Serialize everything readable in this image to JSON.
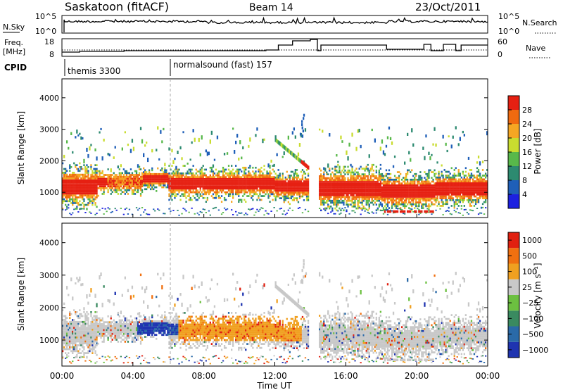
{
  "header": {
    "station": "Saskatoon (fitACF)",
    "beam": "Beam 14",
    "date": "23/Oct/2011"
  },
  "top_panels": {
    "nsky": {
      "label": "N.Sky",
      "right_label": "N.Search",
      "left_ticks": [
        "10^5",
        "10^0"
      ],
      "right_ticks": [
        "10^5",
        "10^0"
      ]
    },
    "freq": {
      "label_line1": "Freq.",
      "label_line2": "[MHz]",
      "right_label": "Nave",
      "left_ticks": [
        "18",
        "8"
      ],
      "right_ticks": [
        "60",
        "0"
      ]
    },
    "cpid": {
      "label": "CPID",
      "segments": [
        {
          "name": "themis 3300",
          "start_hour": 0
        },
        {
          "name": "normalsound (fast) 157",
          "start_hour": 6
        }
      ]
    }
  },
  "chart_data": [
    {
      "type": "heatmap",
      "title": "Power",
      "ylabel": "Slant Range [km]",
      "ylim": [
        200,
        4600
      ],
      "yticks": [
        "1000",
        "2000",
        "3000",
        "4000"
      ],
      "xlim": [
        0,
        24
      ],
      "colorbar": {
        "label": "Power [dB]",
        "ticks": [
          "4",
          "8",
          "12",
          "16",
          "20",
          "24",
          "28"
        ],
        "range": [
          0,
          32
        ]
      }
    },
    {
      "type": "heatmap",
      "title": "Velocity",
      "ylabel": "Slant Range [km]",
      "ylim": [
        200,
        4600
      ],
      "yticks": [
        "1000",
        "2000",
        "3000",
        "4000"
      ],
      "xlim": [
        0,
        24
      ],
      "xlabel": "Time UT",
      "xticks": [
        "00:00",
        "04:00",
        "08:00",
        "12:00",
        "16:00",
        "20:00",
        "00:00"
      ],
      "colorbar": {
        "label": "Velocity [m s⁻¹]",
        "ticks": [
          "1000",
          "500",
          "100",
          "25",
          "−25",
          "−100",
          "−500",
          "−1000"
        ]
      }
    }
  ],
  "colors": {
    "power": [
      "#1c20e0",
      "#1f5fb8",
      "#2d8a70",
      "#58b84a",
      "#c9dc2f",
      "#f5a623",
      "#f06a10",
      "#e62012"
    ],
    "velocity": [
      "#1f34b0",
      "#2a6aa8",
      "#3a8a60",
      "#6cc040",
      "#c8c8c8",
      "#f0a020",
      "#f07010",
      "#e02010"
    ]
  }
}
